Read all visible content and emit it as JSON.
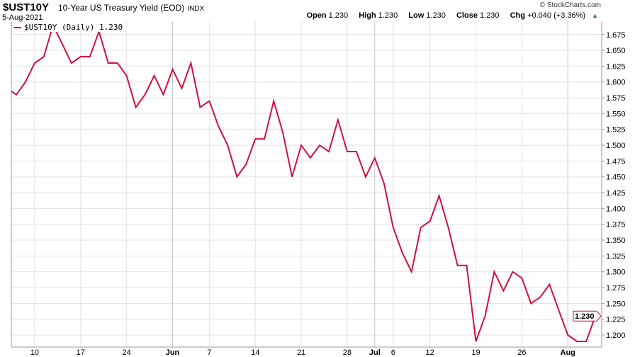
{
  "header": {
    "symbol": "$UST10Y",
    "name": "10-Year US Treasury Yield (EOD)",
    "exchange": "INDX",
    "date": "5-Aug-2021",
    "copyright": "© StockCharts.com",
    "open_label": "Open",
    "open": "1.230",
    "high_label": "High",
    "high": "1.230",
    "low_label": "Low",
    "low": "1.230",
    "close_label": "Close",
    "close": "1.230",
    "chg_label": "Chg",
    "chg": "+0.040 (+3.36%)",
    "chg_icon": "up-triangle-icon"
  },
  "legend": {
    "label": "$UST10Y (Daily) 1.230"
  },
  "last_value_tag": "1.230",
  "colors": {
    "line": "#d0103a",
    "grid": "#e2e2e2",
    "grid_month": "#c4c4c4",
    "up": "#2a8a2a"
  },
  "chart_data": {
    "type": "line",
    "title": "$UST10Y 10-Year US Treasury Yield (EOD)",
    "ylim": [
      1.181,
      1.696
    ],
    "grid": true,
    "legend": "top-left",
    "y_axis_side": "right",
    "y_ticks": [
      "1.200",
      "1.225",
      "1.250",
      "1.275",
      "1.300",
      "1.325",
      "1.350",
      "1.375",
      "1.400",
      "1.425",
      "1.450",
      "1.475",
      "1.500",
      "1.525",
      "1.550",
      "1.575",
      "1.600",
      "1.625",
      "1.650",
      "1.675"
    ],
    "x_ticks": [
      {
        "label": "10",
        "date": "May 10"
      },
      {
        "label": "17",
        "date": "May 17"
      },
      {
        "label": "24",
        "date": "May 24"
      },
      {
        "label": "Jun",
        "date": "Jun 1",
        "month": true
      },
      {
        "label": "7",
        "date": "Jun 7"
      },
      {
        "label": "14",
        "date": "Jun 14"
      },
      {
        "label": "21",
        "date": "Jun 21"
      },
      {
        "label": "28",
        "date": "Jun 28"
      },
      {
        "label": "Jul",
        "date": "Jul 1",
        "month": true
      },
      {
        "label": "6",
        "date": "Jul 6"
      },
      {
        "label": "12",
        "date": "Jul 12"
      },
      {
        "label": "19",
        "date": "Jul 19"
      },
      {
        "label": "26",
        "date": "Jul 26"
      },
      {
        "label": "Aug",
        "date": "Aug 2",
        "month": true
      }
    ],
    "series": [
      {
        "name": "$UST10Y (Daily)",
        "dates": [
          "May 5",
          "May 6",
          "May 7",
          "May 10",
          "May 11",
          "May 12",
          "May 13",
          "May 14",
          "May 17",
          "May 18",
          "May 19",
          "May 20",
          "May 21",
          "May 24",
          "May 25",
          "May 26",
          "May 27",
          "May 28",
          "Jun 1",
          "Jun 2",
          "Jun 3",
          "Jun 4",
          "Jun 7",
          "Jun 8",
          "Jun 9",
          "Jun 10",
          "Jun 11",
          "Jun 14",
          "Jun 15",
          "Jun 16",
          "Jun 17",
          "Jun 18",
          "Jun 21",
          "Jun 22",
          "Jun 23",
          "Jun 24",
          "Jun 25",
          "Jun 28",
          "Jun 29",
          "Jun 30",
          "Jul 1",
          "Jul 2",
          "Jul 6",
          "Jul 7",
          "Jul 8",
          "Jul 9",
          "Jul 12",
          "Jul 13",
          "Jul 14",
          "Jul 15",
          "Jul 16",
          "Jul 19",
          "Jul 20",
          "Jul 21",
          "Jul 22",
          "Jul 23",
          "Jul 26",
          "Jul 27",
          "Jul 28",
          "Jul 29",
          "Jul 30",
          "Aug 2",
          "Aug 3",
          "Aug 4",
          "Aug 5"
        ],
        "values": [
          1.59,
          1.58,
          1.6,
          1.63,
          1.64,
          1.69,
          1.66,
          1.63,
          1.64,
          1.64,
          1.68,
          1.63,
          1.63,
          1.61,
          1.56,
          1.58,
          1.61,
          1.58,
          1.62,
          1.59,
          1.63,
          1.56,
          1.57,
          1.53,
          1.5,
          1.45,
          1.47,
          1.51,
          1.51,
          1.57,
          1.52,
          1.45,
          1.5,
          1.48,
          1.5,
          1.49,
          1.54,
          1.49,
          1.49,
          1.45,
          1.48,
          1.44,
          1.37,
          1.33,
          1.3,
          1.37,
          1.38,
          1.42,
          1.37,
          1.31,
          1.31,
          1.19,
          1.23,
          1.3,
          1.27,
          1.3,
          1.29,
          1.25,
          1.26,
          1.28,
          1.24,
          1.2,
          1.19,
          1.19,
          1.23
        ]
      }
    ]
  }
}
